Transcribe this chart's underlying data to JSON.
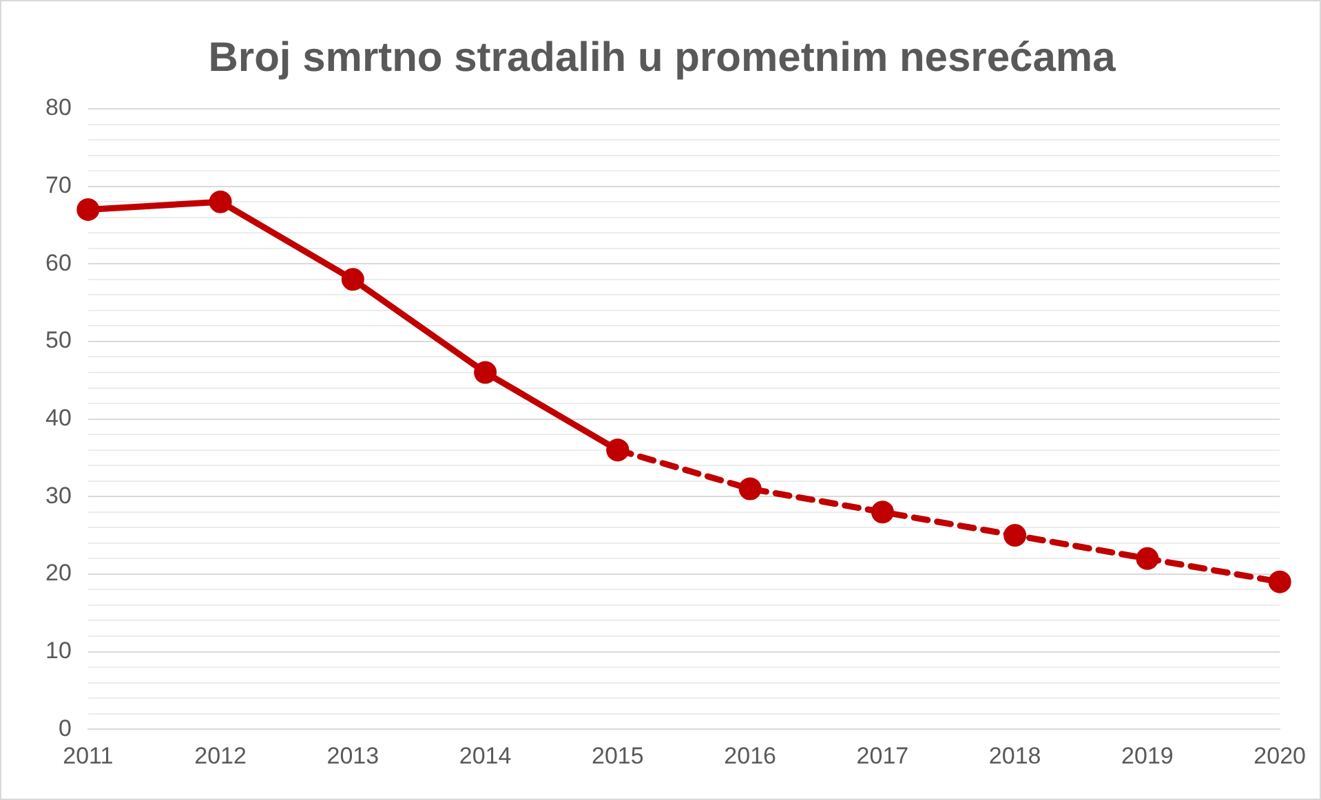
{
  "chart_data": {
    "type": "line",
    "title": "Broj smrtno stradalih u prometnim nesrećama",
    "categories": [
      "2011",
      "2012",
      "2013",
      "2014",
      "2015",
      "2016",
      "2017",
      "2018",
      "2019",
      "2020"
    ],
    "series": [
      {
        "color": "#c00000",
        "line_style": "solid",
        "values": [
          67,
          68,
          58,
          46,
          36,
          null,
          null,
          null,
          null,
          null
        ]
      },
      {
        "color": "#c00000",
        "line_style": "dashed",
        "values": [
          null,
          null,
          null,
          null,
          36,
          31,
          28,
          25,
          22,
          19
        ]
      }
    ],
    "ylim": [
      0,
      80
    ],
    "yticks": [
      0,
      {
        "value": 2,
        "label": null
      },
      {
        "value": 4,
        "label": null
      },
      {
        "value": 6,
        "label": null
      },
      {
        "value": 8,
        "label": null
      },
      10,
      {
        "value": 12,
        "label": null
      },
      {
        "value": 14,
        "label": null
      },
      {
        "value": 16,
        "label": null
      },
      {
        "value": 18,
        "label": null
      },
      20,
      {
        "value": 22,
        "label": null
      },
      {
        "value": 24,
        "label": null
      },
      {
        "value": 26,
        "label": null
      },
      {
        "value": 28,
        "label": null
      },
      30,
      {
        "value": 32,
        "label": null
      },
      {
        "value": 34,
        "label": null
      },
      {
        "value": 36,
        "label": null
      },
      {
        "value": 38,
        "label": null
      },
      40,
      {
        "value": 42,
        "label": null
      },
      {
        "value": 44,
        "label": null
      },
      {
        "value": 46,
        "label": null
      },
      {
        "value": 48,
        "label": null
      },
      50,
      {
        "value": 52,
        "label": null
      },
      {
        "value": 54,
        "label": null
      },
      {
        "value": 56,
        "label": null
      },
      {
        "value": 58,
        "label": null
      },
      60,
      {
        "value": 62,
        "label": null
      },
      {
        "value": 64,
        "label": null
      },
      {
        "value": 66,
        "label": null
      },
      {
        "value": 68,
        "label": null
      },
      70,
      {
        "value": 72,
        "label": null
      },
      {
        "value": 74,
        "label": null
      },
      {
        "value": 76,
        "label": null
      },
      {
        "value": 78,
        "label": null
      },
      80
    ],
    "grid": "y",
    "legend": false,
    "marker": "circle"
  }
}
